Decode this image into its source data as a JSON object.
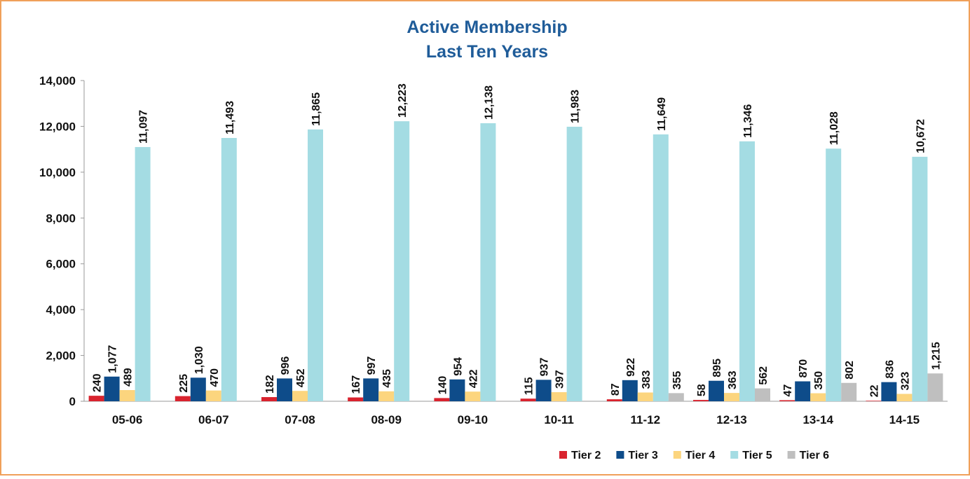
{
  "chart_data": {
    "type": "bar",
    "title": [
      "Active Membership",
      "Last Ten Years"
    ],
    "categories": [
      "05-06",
      "06-07",
      "07-08",
      "08-09",
      "09-10",
      "10-11",
      "11-12",
      "12-13",
      "13-14",
      "14-15"
    ],
    "series": [
      {
        "name": "Tier 2",
        "color": "#d9232e",
        "values": [
          240,
          225,
          182,
          167,
          140,
          115,
          87,
          58,
          47,
          22
        ]
      },
      {
        "name": "Tier 3",
        "color": "#0e4c8a",
        "values": [
          1077,
          1030,
          996,
          997,
          954,
          937,
          922,
          895,
          870,
          836
        ],
        "value_labels": [
          "1,077",
          "1,030",
          "996",
          "997",
          "954",
          "937",
          "922",
          "895",
          "870",
          "836"
        ]
      },
      {
        "name": "Tier 4",
        "color": "#fcd57e",
        "values": [
          489,
          470,
          452,
          435,
          422,
          397,
          383,
          363,
          350,
          323
        ]
      },
      {
        "name": "Tier 5",
        "color": "#a4dce3",
        "values": [
          11097,
          11493,
          11865,
          12223,
          12138,
          11983,
          11649,
          11346,
          11028,
          10672
        ],
        "value_labels": [
          "11,097",
          "11,493",
          "11,865",
          "12,223",
          "12,138",
          "11,983",
          "11,649",
          "11,346",
          "11,028",
          "10,672"
        ]
      },
      {
        "name": "Tier 6",
        "color": "#bfbfbf",
        "values": [
          null,
          null,
          null,
          null,
          null,
          null,
          355,
          562,
          802,
          1215
        ],
        "value_labels": [
          null,
          null,
          null,
          null,
          null,
          null,
          "355",
          "562",
          "802",
          "1,215"
        ]
      }
    ],
    "ylim": [
      0,
      14000
    ],
    "yticks": [
      0,
      {
        "value": 2000,
        "label": "2,000"
      },
      {
        "value": 4000,
        "label": "4,000"
      },
      {
        "value": 6000,
        "label": "6,000"
      },
      {
        "value": 8000,
        "label": "8,000"
      },
      {
        "value": 10000,
        "label": "10,000"
      },
      {
        "value": 12000,
        "label": "12,000"
      },
      {
        "value": 14000,
        "label": "14,000"
      }
    ],
    "grid": false,
    "legend": "bottom-right"
  }
}
